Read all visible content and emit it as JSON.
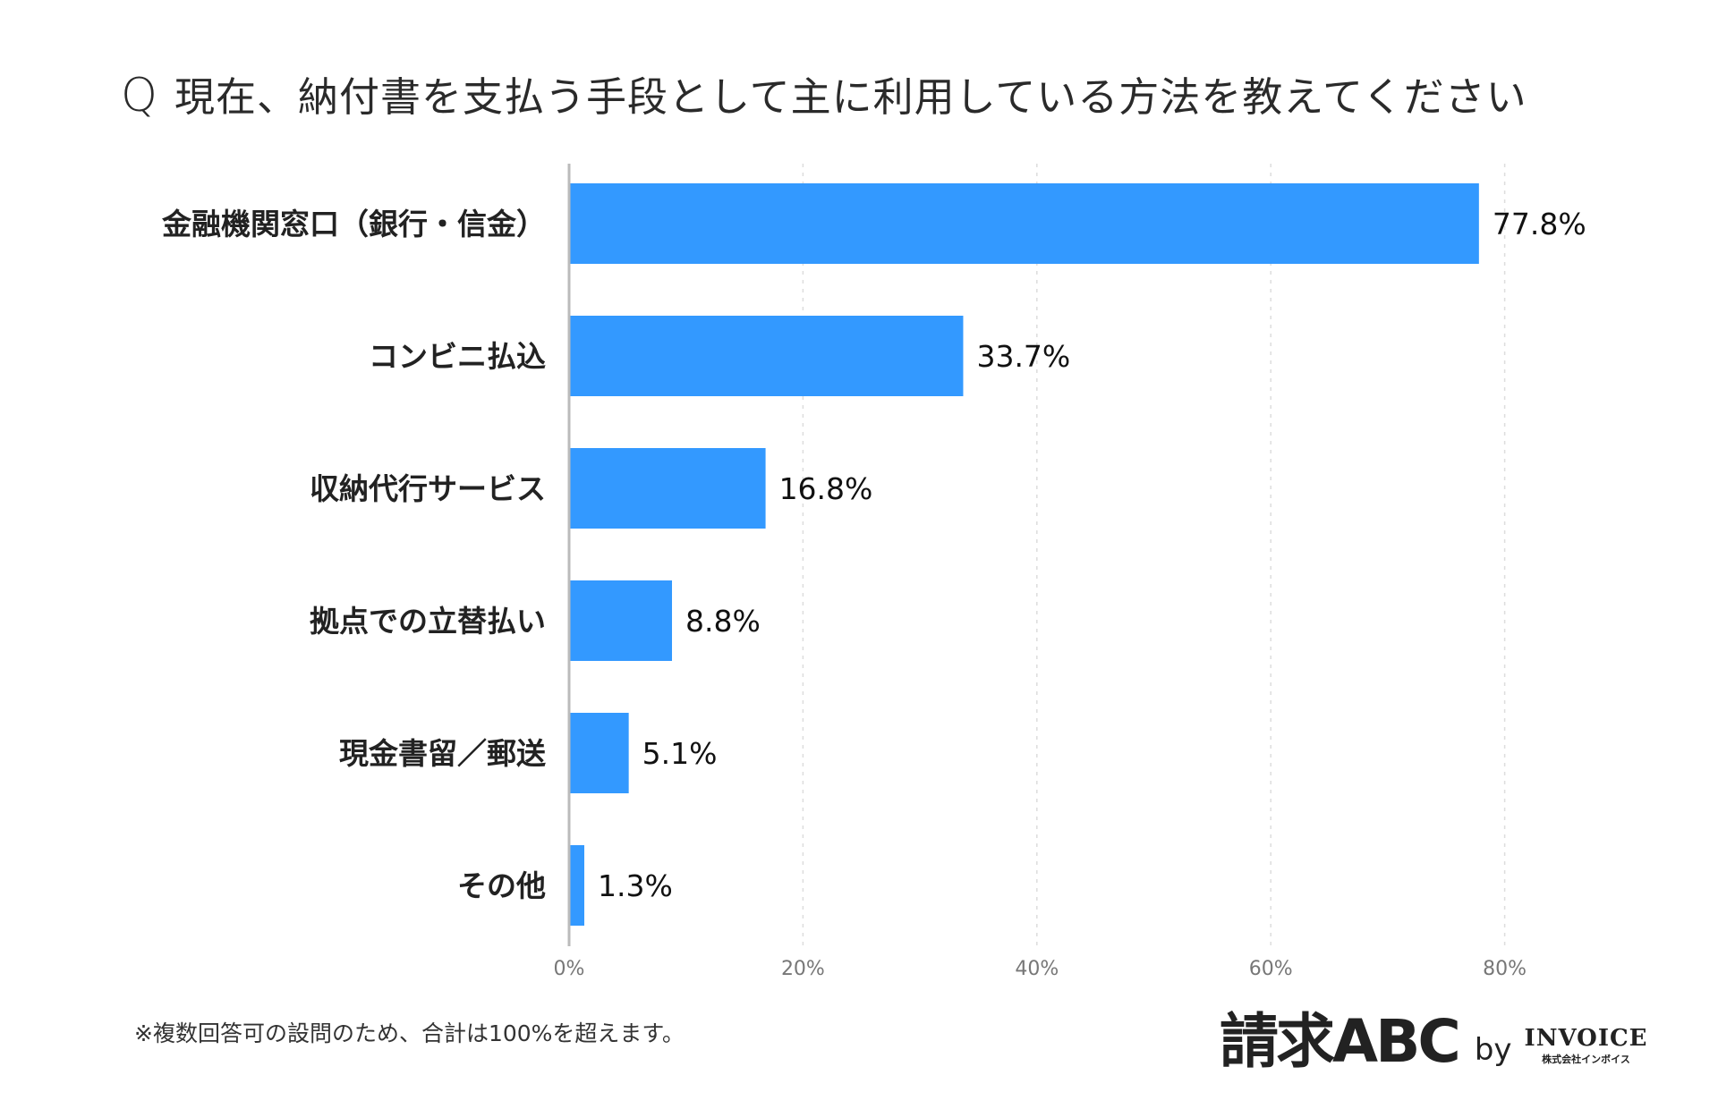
{
  "title": {
    "prefix": "Q",
    "text": "現在、納付書を支払う手段として主に利用している方法を教えてください"
  },
  "footnote": "※複数回答可の設問のため、合計は100%を超えます。",
  "logo": {
    "main": "請求ABC",
    "by": "by",
    "brand": "INVOICE",
    "company": "株式会社インボイス"
  },
  "colors": {
    "bar": "#3399ff",
    "axis": "#bbbbbb",
    "grid": "#dddddd"
  },
  "chart_data": {
    "type": "bar",
    "orientation": "horizontal",
    "categories": [
      "金融機関窓口（銀行・信金）",
      "コンビニ払込",
      "収納代行サービス",
      "拠点での立替払い",
      "現金書留／郵送",
      "その他"
    ],
    "values": [
      77.8,
      33.7,
      16.8,
      8.8,
      5.1,
      1.3
    ],
    "data_labels": [
      "77.8%",
      "33.7%",
      "16.8%",
      "8.8%",
      "5.1%",
      "1.3%"
    ],
    "xlim": [
      0,
      80
    ],
    "x_ticks": [
      0,
      20,
      40,
      60,
      80
    ],
    "x_tick_labels": [
      "0%",
      "20%",
      "40%",
      "60%",
      "80%"
    ],
    "grid": "vertical dashed"
  }
}
